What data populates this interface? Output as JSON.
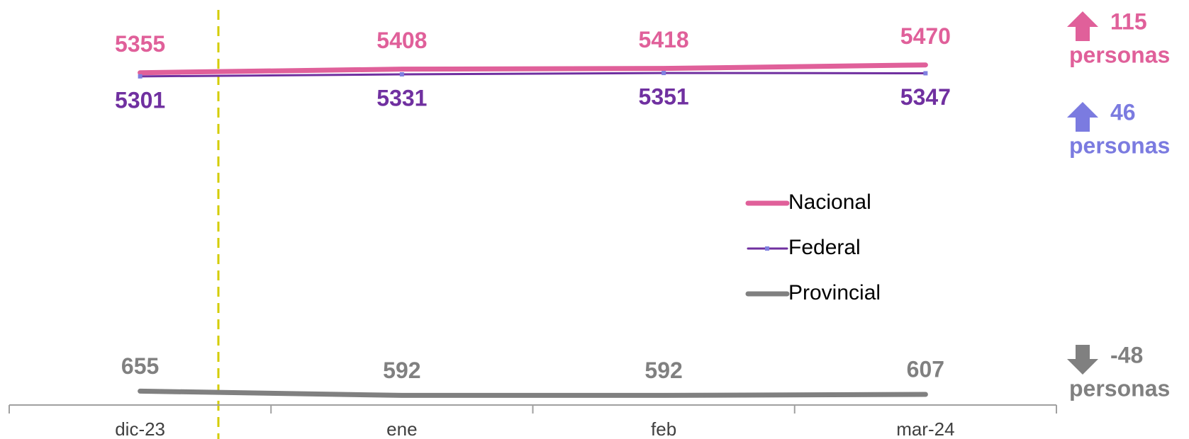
{
  "chart_data": {
    "type": "line",
    "categories": [
      "dic-23",
      "ene",
      "feb",
      "mar-24"
    ],
    "series": [
      {
        "name": "Nacional",
        "color": "#e0609a",
        "values": [
          5355,
          5408,
          5418,
          5470
        ]
      },
      {
        "name": "Federal",
        "color": "#7030a0",
        "values": [
          5301,
          5331,
          5351,
          5347
        ]
      },
      {
        "name": "Provincial",
        "color": "#808080",
        "values": [
          655,
          592,
          592,
          607
        ]
      }
    ],
    "ylim": [
      450,
      6000
    ],
    "annotations": [
      {
        "value": "115",
        "text": "personas",
        "color": "#e0609a",
        "direction": "up"
      },
      {
        "value": "46",
        "text": "personas",
        "color": "#7b7be0",
        "direction": "up"
      },
      {
        "value": "-48",
        "text": "personas",
        "color": "#808080",
        "direction": "down"
      }
    ]
  }
}
